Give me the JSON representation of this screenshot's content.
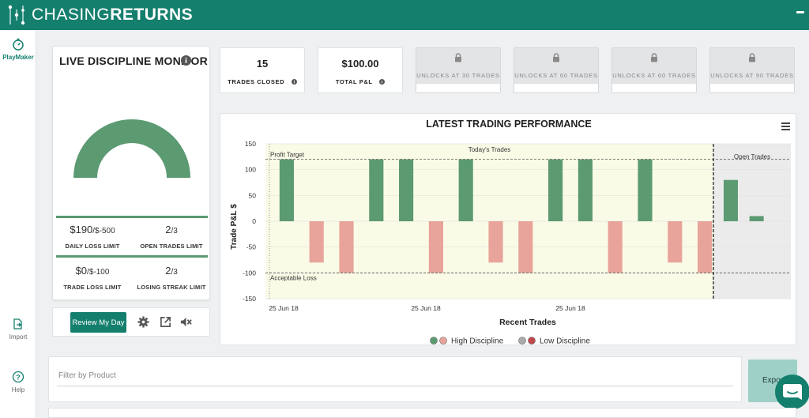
{
  "app": {
    "title_regular": "CHASING",
    "title_bold": "RETURNS"
  },
  "sidebar": {
    "items": [
      {
        "label": "PlayMaker",
        "icon": "stopwatch-icon"
      },
      {
        "label": "Import",
        "icon": "import-icon"
      },
      {
        "label": "Help",
        "icon": "help-icon"
      }
    ]
  },
  "monitor": {
    "title": "LIVE DISCIPLINE MONITOR",
    "gauge_color": "#5c9a72",
    "daily_loss": {
      "value": "$190",
      "limit": "/$-500",
      "label": "DAILY LOSS LIMIT"
    },
    "open_trades": {
      "value": "2",
      "limit": "/3",
      "label": "OPEN TRADES LIMIT"
    },
    "trade_loss": {
      "value": "$0",
      "limit": "/$-100",
      "label": "TRADE LOSS LIMIT"
    },
    "losing_streak": {
      "value": "2",
      "limit": "/3",
      "label": "LOSING STREAK LIMIT"
    }
  },
  "controls": {
    "review_label": "Review My Day"
  },
  "kpis": [
    {
      "value": "15",
      "label": "TRADES CLOSED"
    },
    {
      "value": "$100.00",
      "label": "TOTAL P&L"
    }
  ],
  "locked": [
    {
      "label": "UNLOCKS AT 30 TRADES"
    },
    {
      "label": "UNLOCKS AT 60 TRADES"
    },
    {
      "label": "UNLOCKS AT 60 TRADES"
    },
    {
      "label": "UNLOCKS AT 90 TRADES"
    }
  ],
  "filter": {
    "placeholder": "Filter by Product",
    "export_label": "Export"
  },
  "chart_data": {
    "type": "bar",
    "title": "LATEST TRADING PERFORMANCE",
    "xlabel": "Recent Trades",
    "ylabel": "Trade P&L $",
    "ylim": [
      -150,
      150
    ],
    "yticks": [
      150,
      100,
      50,
      0,
      -50,
      -100,
      -150
    ],
    "xtick_labels": [
      "25 Jun 18",
      "25 Jun 18",
      "25 Jun 18"
    ],
    "profit_target": 120,
    "acceptable_loss": -100,
    "annotations": {
      "profit_target": "Profit Target",
      "acceptable_loss": "Acceptable Loss",
      "todays_trades": "Today's Trades",
      "open_trades": "Open Trades"
    },
    "colors": {
      "high_positive": "#5c9a72",
      "high_negative": "#e8a39a",
      "low_positive": "#aaaaaa",
      "low_negative": "#c0474c",
      "band_today": "#fafbe6",
      "band_open": "#ebebeb"
    },
    "trades": [
      120,
      -80,
      -100,
      120,
      120,
      -100,
      120,
      -80,
      -100,
      120,
      120,
      -100,
      120,
      -80,
      -100
    ],
    "open_trades": [
      80,
      10
    ],
    "legend": [
      {
        "label": "High Discipline",
        "colors": [
          "#5c9a72",
          "#e8a39a"
        ]
      },
      {
        "label": "Low Discipline",
        "colors": [
          "#aaaaaa",
          "#c0474c"
        ]
      }
    ]
  }
}
